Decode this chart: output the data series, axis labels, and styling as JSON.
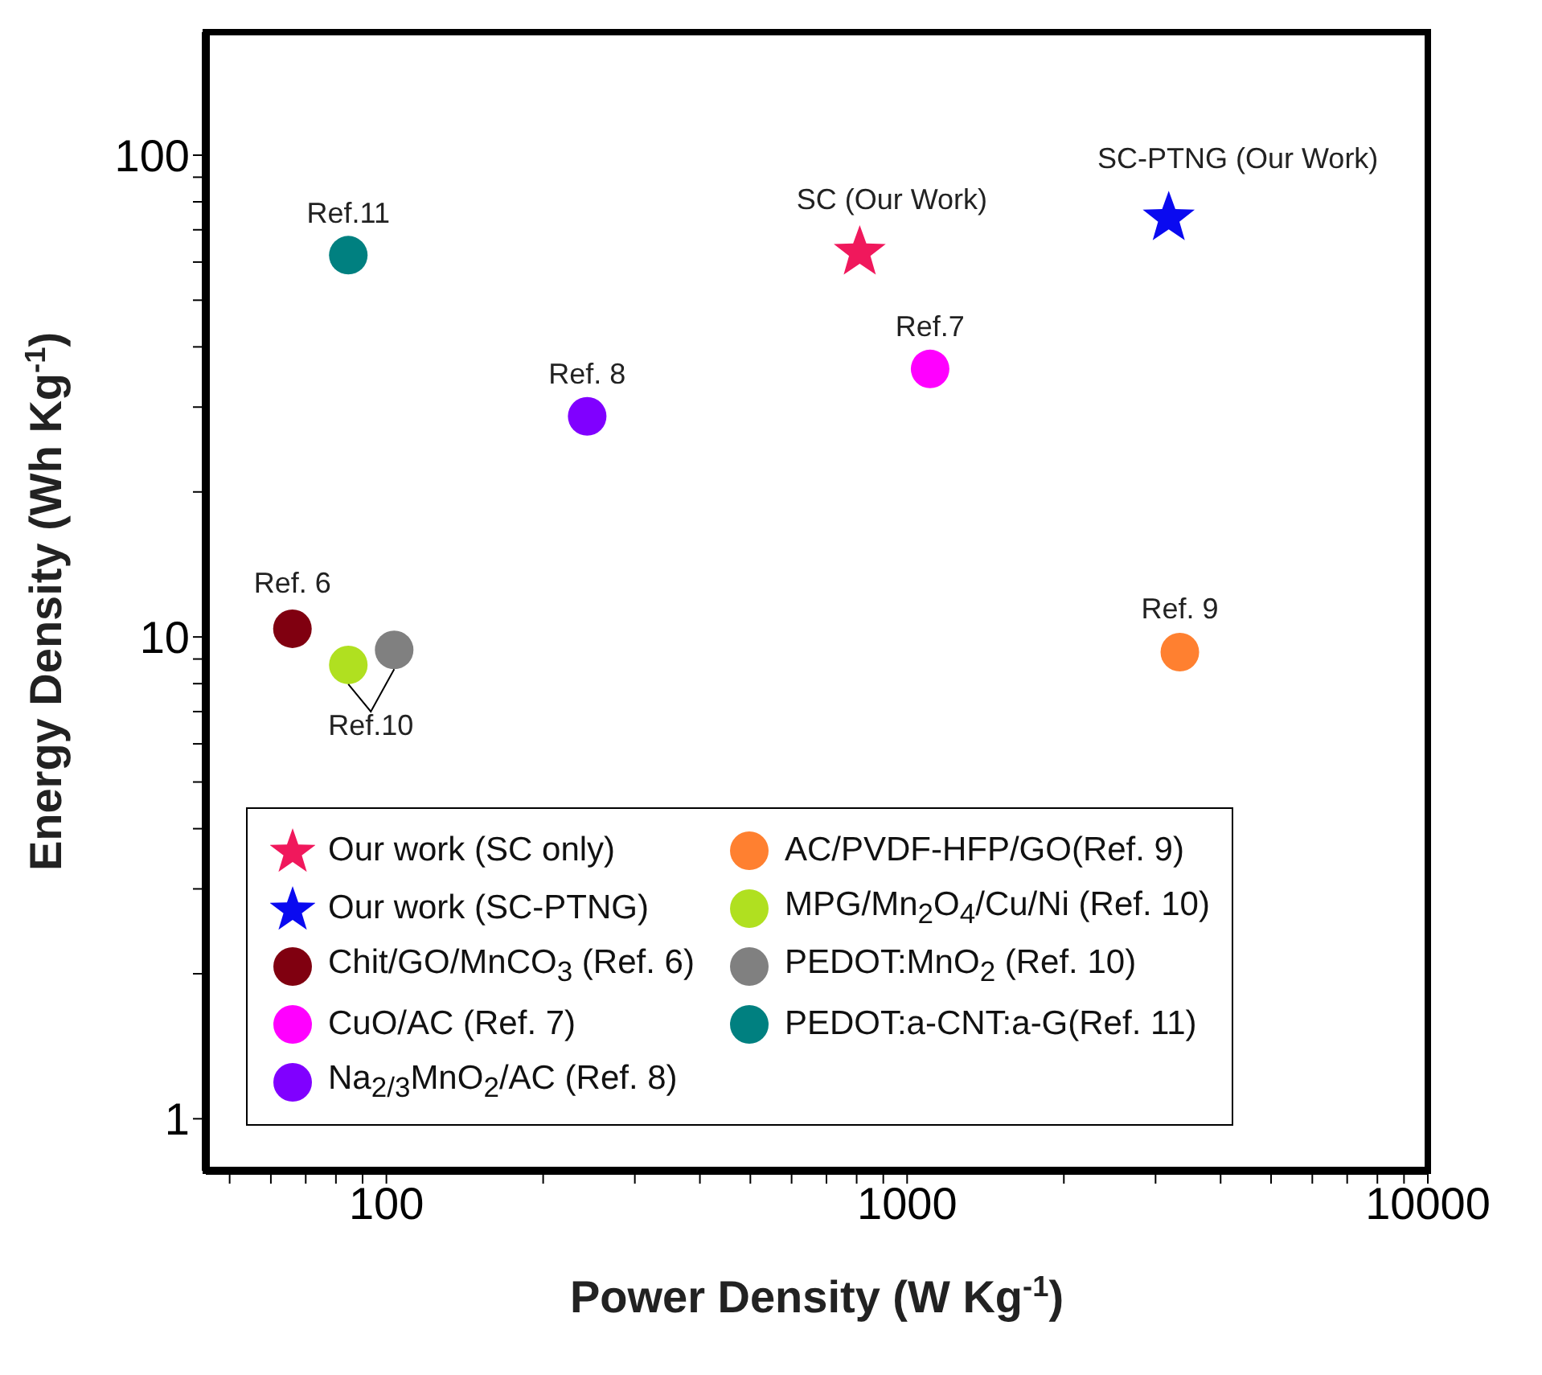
{
  "chart_data": {
    "type": "scatter",
    "xlabel": "Power Density (W Kg$^{-1}$)",
    "ylabel": "Energy Density (Wh Kg$^{-1}$)",
    "log": "xy",
    "xlim": [
      45,
      10000
    ],
    "ylim": [
      0.78,
      180
    ],
    "xticks": [
      {
        "value": 50,
        "label": null
      },
      {
        "value": 60,
        "label": null
      },
      {
        "value": 70,
        "label": null
      },
      {
        "value": 80,
        "label": null
      },
      {
        "value": 90,
        "label": null
      },
      100,
      {
        "value": 200,
        "label": null
      },
      {
        "value": 300,
        "label": null
      },
      {
        "value": 400,
        "label": null
      },
      {
        "value": 500,
        "label": null
      },
      {
        "value": 600,
        "label": null
      },
      {
        "value": 700,
        "label": null
      },
      {
        "value": 800,
        "label": null
      },
      {
        "value": 900,
        "label": null
      },
      1000,
      {
        "value": 2000,
        "label": null
      },
      {
        "value": 3000,
        "label": null
      },
      {
        "value": 4000,
        "label": null
      },
      {
        "value": 5000,
        "label": null
      },
      {
        "value": 6000,
        "label": null
      },
      {
        "value": 7000,
        "label": null
      },
      {
        "value": 8000,
        "label": null
      },
      {
        "value": 9000,
        "label": null
      },
      10000
    ],
    "yticks": [
      1,
      {
        "value": 2,
        "label": null
      },
      {
        "value": 3,
        "label": null
      },
      {
        "value": 4,
        "label": null
      },
      {
        "value": 5,
        "label": null
      },
      {
        "value": 6,
        "label": null
      },
      {
        "value": 7,
        "label": null
      },
      {
        "value": 8,
        "label": null
      },
      {
        "value": 9,
        "label": null
      },
      10,
      {
        "value": 20,
        "label": null
      },
      {
        "value": 30,
        "label": null
      },
      {
        "value": 40,
        "label": null
      },
      {
        "value": 50,
        "label": null
      },
      {
        "value": 60,
        "label": null
      },
      {
        "value": 70,
        "label": null
      },
      {
        "value": 80,
        "label": null
      },
      {
        "value": 90,
        "label": null
      },
      100
    ],
    "grid": false,
    "legend": "bottom",
    "series": [
      {
        "name": "Our work (SC only)",
        "color": "#f0185c",
        "marker": "star",
        "x": [
          811
        ],
        "values": [
          62.8
        ]
      },
      {
        "name": "Our work (SC-PTNG)",
        "color": "#0a0af0",
        "marker": "star",
        "x": [
          3180
        ],
        "values": [
          74
        ]
      },
      {
        "name": "Chit/GO/MnCO$_{3}$ (Ref. 6)",
        "color": "#800010",
        "marker": "circle",
        "x": [
          66
        ],
        "values": [
          10.4
        ]
      },
      {
        "name": "CuO/AC (Ref. 7)",
        "color": "#ff00ff",
        "marker": "circle",
        "x": [
          1107
        ],
        "values": [
          36
        ]
      },
      {
        "name": "Na$_{2/3}$MnO$_{2}$/AC (Ref. 8)",
        "color": "#8000ff",
        "marker": "circle",
        "x": [
          243
        ],
        "values": [
          28.7
        ]
      },
      {
        "name": "AC/PVDF-HFP/GO(Ref. 9)",
        "color": "#ff8030",
        "marker": "circle",
        "x": [
          3340
        ],
        "values": [
          9.3
        ]
      },
      {
        "name": "MPG/Mn$_{2}$O$_{4}$/Cu/Ni (Ref. 10)",
        "color": "#b0e020",
        "marker": "circle",
        "x": [
          84.5
        ],
        "values": [
          8.75
        ]
      },
      {
        "name": "PEDOT:MnO$_{2}$ (Ref. 10)",
        "color": "#808080",
        "marker": "circle",
        "x": [
          103.5
        ],
        "values": [
          9.4
        ]
      },
      {
        "name": "PEDOT:a-CNT:a-G(Ref. 11)",
        "color": "#008080",
        "marker": "circle",
        "x": [
          84.5
        ],
        "values": [
          62
        ]
      }
    ],
    "annotations": [
      {
        "text": "Ref.11",
        "x": 84.5,
        "y": 62
      },
      {
        "text": "Ref. 8",
        "x": 243,
        "y": 28.7
      },
      {
        "text": "Ref.7",
        "x": 1107,
        "y": 36
      },
      {
        "text": "Ref. 6",
        "x": 66,
        "y": 10.4
      },
      {
        "text": "Ref. 9",
        "x": 3340,
        "y": 9.3
      },
      {
        "text": "Ref.10",
        "x": 84.5,
        "y": 8.75
      },
      {
        "text": "SC (Our Work)",
        "x": 811,
        "y": 62.8
      },
      {
        "text": "SC-PTNG (Our Work)",
        "x": 3180,
        "y": 74
      }
    ]
  }
}
